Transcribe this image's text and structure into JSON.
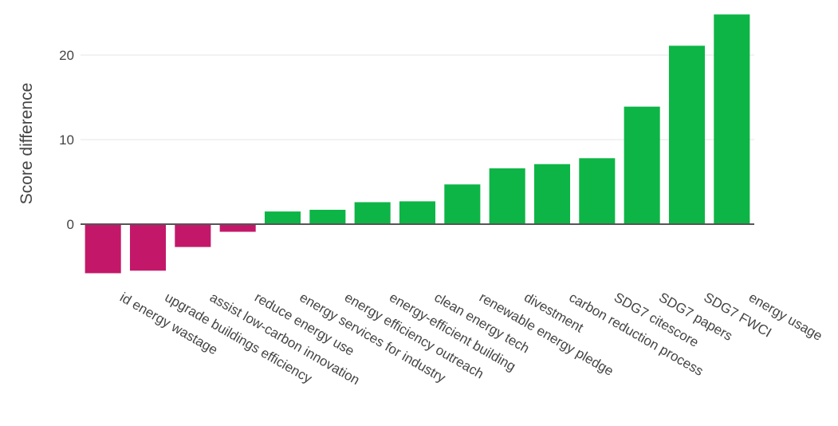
{
  "chart_data": {
    "type": "bar",
    "ylabel": "Score difference",
    "xlabel": "",
    "title": "",
    "ylim": [
      -7,
      25
    ],
    "yticks": [
      0,
      10,
      20
    ],
    "grid": true,
    "legend": "none",
    "colors": {
      "positive": "#0db546",
      "negative": "#c3186a"
    },
    "categories": [
      "id energy wastage",
      "upgrade buildings efficiency",
      "assist low-carbon innovation",
      "reduce energy use",
      "energy services for industry",
      "energy efficiency outreach",
      "energy-efficient building",
      "clean energy tech",
      "renewable energy pledge",
      "divestment",
      "carbon reduction process",
      "SDG7 citescore",
      "SDG7 papers",
      "SDG7 FWCI",
      "energy usage"
    ],
    "values": [
      -5.8,
      -5.5,
      -2.7,
      -0.9,
      1.5,
      1.7,
      2.6,
      2.7,
      4.7,
      6.6,
      7.1,
      7.8,
      13.9,
      21.1,
      24.8
    ]
  }
}
